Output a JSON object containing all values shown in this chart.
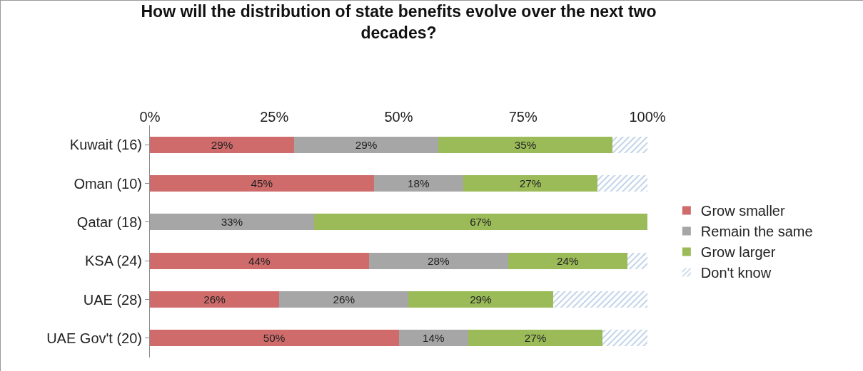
{
  "chart_data": {
    "type": "bar",
    "orientation": "horizontal",
    "stacked": true,
    "title": "How will the distribution of state benefits evolve over the next two decades?",
    "categories": [
      "Kuwait (16)",
      "Oman (10)",
      "Qatar (18)",
      "KSA (24)",
      "UAE (28)",
      "UAE Gov't (20)"
    ],
    "series": [
      {
        "name": "Grow smaller",
        "color": "#d06b6b",
        "values": [
          29,
          45,
          0,
          44,
          26,
          50
        ],
        "value_labels": [
          "29%",
          "45%",
          null,
          "44%",
          "26%",
          "50%"
        ]
      },
      {
        "name": "Remain the same",
        "color": "#a6a6a6",
        "values": [
          29,
          18,
          33,
          28,
          26,
          14
        ],
        "value_labels": [
          "29%",
          "18%",
          "33%",
          "28%",
          "26%",
          "14%"
        ]
      },
      {
        "name": "Grow larger",
        "color": "#9bbb59",
        "values": [
          35,
          27,
          67,
          24,
          29,
          27
        ],
        "value_labels": [
          "35%",
          "27%",
          "67%",
          "24%",
          "29%",
          "27%"
        ]
      },
      {
        "name": "Don't know",
        "color": "#b9cde5",
        "values": [
          7,
          10,
          0,
          4,
          19,
          9
        ],
        "value_labels": [
          null,
          null,
          null,
          null,
          null,
          null
        ]
      }
    ],
    "xlim": [
      0,
      100
    ],
    "xticks": [
      {
        "value": 0,
        "label": "0%"
      },
      {
        "value": 25,
        "label": "25%"
      },
      {
        "value": 50,
        "label": "50%"
      },
      {
        "value": 75,
        "label": "75%"
      },
      {
        "value": 100,
        "label": "100%"
      }
    ],
    "grid": false,
    "legend": "right"
  }
}
